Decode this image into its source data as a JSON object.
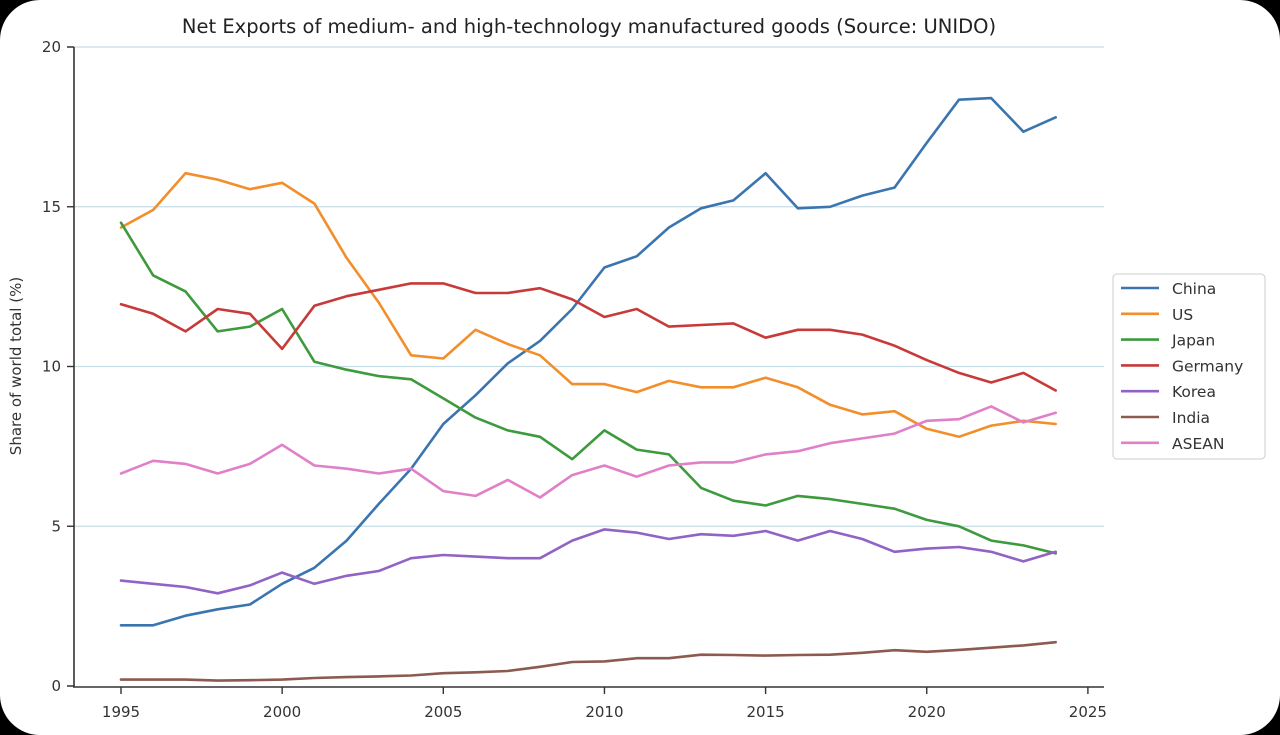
{
  "chart_data": {
    "type": "line",
    "title": "Net Exports of medium- and high-technology manufactured goods (Source: UNIDO)",
    "xlabel": "",
    "ylabel": "Share of world total (%)",
    "xlim": [
      1993.5,
      2025.5
    ],
    "ylim": [
      0,
      20
    ],
    "xticks": [
      1995,
      2000,
      2005,
      2010,
      2015,
      2020,
      2025
    ],
    "yticks": [
      0,
      5,
      10,
      15,
      20
    ],
    "grid": "horizontal",
    "legend_position": "right-center",
    "x": [
      1995,
      1996,
      1997,
      1998,
      1999,
      2000,
      2001,
      2002,
      2003,
      2004,
      2005,
      2006,
      2007,
      2008,
      2009,
      2010,
      2011,
      2012,
      2013,
      2014,
      2015,
      2016,
      2017,
      2018,
      2019,
      2020,
      2021,
      2022,
      2023,
      2024
    ],
    "series": [
      {
        "name": "China",
        "color": "#3a75b0",
        "values": [
          1.9,
          1.9,
          2.2,
          2.4,
          2.55,
          3.2,
          3.7,
          4.55,
          5.7,
          6.8,
          8.2,
          9.1,
          10.1,
          10.8,
          11.8,
          13.1,
          13.45,
          14.35,
          14.95,
          15.2,
          16.05,
          14.95,
          15.0,
          15.35,
          15.6,
          17.0,
          18.35,
          18.4,
          17.35,
          17.8
        ]
      },
      {
        "name": "US",
        "color": "#f28e2b",
        "values": [
          14.35,
          14.9,
          16.05,
          15.85,
          15.55,
          15.75,
          15.1,
          13.4,
          12.0,
          10.35,
          10.25,
          11.15,
          10.7,
          10.35,
          9.45,
          9.45,
          9.2,
          9.55,
          9.35,
          9.35,
          9.65,
          9.35,
          8.8,
          8.5,
          8.6,
          8.05,
          7.8,
          8.15,
          8.3,
          8.2
        ]
      },
      {
        "name": "Japan",
        "color": "#3d9a3d",
        "values": [
          14.5,
          12.85,
          12.35,
          11.1,
          11.25,
          11.8,
          10.15,
          9.9,
          9.7,
          9.6,
          9.0,
          8.4,
          8.0,
          7.8,
          7.1,
          8.0,
          7.4,
          7.25,
          6.2,
          5.8,
          5.65,
          5.95,
          5.85,
          5.7,
          5.55,
          5.2,
          5.0,
          4.55,
          4.4,
          4.15
        ]
      },
      {
        "name": "Germany",
        "color": "#c83a3a",
        "values": [
          11.95,
          11.65,
          11.1,
          11.8,
          11.65,
          10.55,
          11.9,
          12.2,
          12.4,
          12.6,
          12.6,
          12.3,
          12.3,
          12.45,
          12.1,
          11.55,
          11.8,
          11.25,
          11.3,
          11.35,
          10.9,
          11.15,
          11.15,
          11.0,
          10.65,
          10.2,
          9.8,
          9.5,
          9.8,
          9.25
        ]
      },
      {
        "name": "Korea",
        "color": "#9063c4",
        "values": [
          3.3,
          3.2,
          3.1,
          2.9,
          3.15,
          3.55,
          3.2,
          3.45,
          3.6,
          4.0,
          4.1,
          4.05,
          4.0,
          4.0,
          4.55,
          4.9,
          4.8,
          4.6,
          4.75,
          4.7,
          4.85,
          4.55,
          4.85,
          4.6,
          4.2,
          4.3,
          4.35,
          4.2,
          3.9,
          4.2
        ]
      },
      {
        "name": "India",
        "color": "#8c5a4f",
        "values": [
          0.2,
          0.2,
          0.2,
          0.17,
          0.18,
          0.2,
          0.25,
          0.28,
          0.3,
          0.33,
          0.4,
          0.43,
          0.47,
          0.6,
          0.75,
          0.77,
          0.87,
          0.87,
          0.98,
          0.97,
          0.95,
          0.97,
          0.98,
          1.04,
          1.12,
          1.07,
          1.13,
          1.2,
          1.27,
          1.37
        ]
      },
      {
        "name": "ASEAN",
        "color": "#e080c8",
        "values": [
          6.65,
          7.05,
          6.95,
          6.65,
          6.95,
          7.55,
          6.9,
          6.8,
          6.65,
          6.8,
          6.1,
          5.95,
          6.45,
          5.9,
          6.6,
          6.9,
          6.55,
          6.9,
          7.0,
          7.0,
          7.25,
          7.35,
          7.6,
          7.75,
          7.9,
          8.3,
          8.35,
          8.75,
          8.25,
          8.55
        ]
      }
    ]
  },
  "colors": {
    "grid": "#c7dde8",
    "axis": "#333333",
    "legend_border": "#cccccc"
  }
}
